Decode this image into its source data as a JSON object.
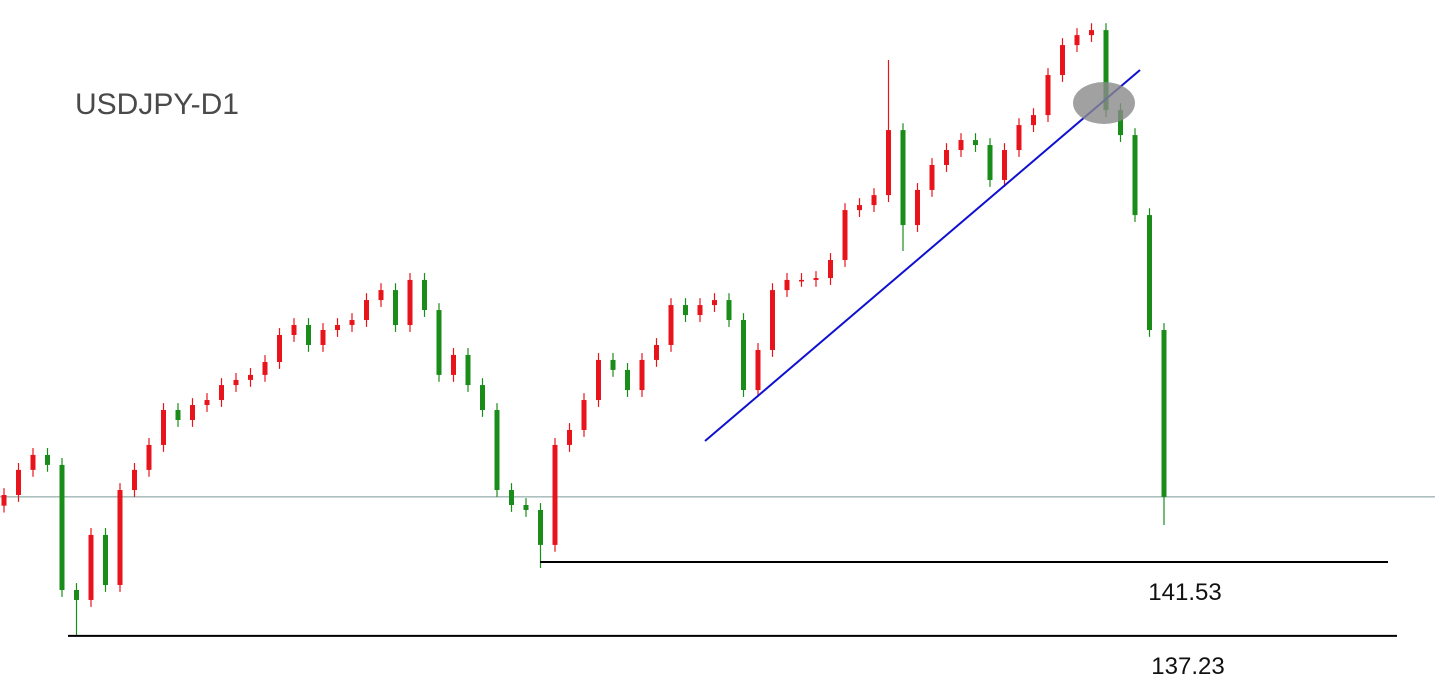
{
  "chart_data": {
    "type": "candlestick",
    "title": "USDJPY-D1",
    "ylim": [
      134.32,
      174.19
    ],
    "up_color": "#e8141c",
    "down_color": "#1a8c1a",
    "levels": [
      141.53,
      137.23
    ],
    "open": [
      144.8,
      145.42,
      146.88,
      147.75,
      147.17,
      139.9,
      139.32,
      143.1,
      140.19,
      145.71,
      146.88,
      148.33,
      150.36,
      149.78,
      150.65,
      150.94,
      151.81,
      152.11,
      152.4,
      153.15,
      154.72,
      155.3,
      154.14,
      155.01,
      155.3,
      155.59,
      156.75,
      157.33,
      155.3,
      157.92,
      156.17,
      152.4,
      153.56,
      151.81,
      150.36,
      145.71,
      144.84,
      144.55,
      142.52,
      148.33,
      149.2,
      150.94,
      153.27,
      152.69,
      151.52,
      153.27,
      154.14,
      156.46,
      155.88,
      156.46,
      156.75,
      155.59,
      151.52,
      153.85,
      157.33,
      157.92,
      157.92,
      158.03,
      159.08,
      161.98,
      162.27,
      162.85,
      166.63,
      161.11,
      163.15,
      164.6,
      165.47,
      166.05,
      165.76,
      163.73,
      165.47,
      166.92,
      167.5,
      169.83,
      171.57,
      172.15,
      172.44,
      167.79,
      166.34,
      161.69,
      155.01
    ],
    "high": [
      145.82,
      147.28,
      148.15,
      148.15,
      147.57,
      140.3,
      143.5,
      143.5,
      146.11,
      147.28,
      148.73,
      150.76,
      150.76,
      151.05,
      151.34,
      152.21,
      152.51,
      152.8,
      153.55,
      155.12,
      155.7,
      155.7,
      155.41,
      155.7,
      155.99,
      157.15,
      157.73,
      157.73,
      158.32,
      158.32,
      156.57,
      153.96,
      153.96,
      152.21,
      150.76,
      146.11,
      145.24,
      144.95,
      148.73,
      149.6,
      151.34,
      153.67,
      153.67,
      153.09,
      153.67,
      154.54,
      156.86,
      156.86,
      156.86,
      157.15,
      157.15,
      155.99,
      154.25,
      157.73,
      158.32,
      158.32,
      158.43,
      159.48,
      162.38,
      162.67,
      163.25,
      170.7,
      167.03,
      163.55,
      165.0,
      165.87,
      166.45,
      166.45,
      166.16,
      165.87,
      167.32,
      167.9,
      170.23,
      171.97,
      172.55,
      172.84,
      172.84,
      168.19,
      166.74,
      162.09,
      155.41
    ],
    "low": [
      144.4,
      145.02,
      146.48,
      146.77,
      139.5,
      137.23,
      138.92,
      139.79,
      139.79,
      145.31,
      146.48,
      147.93,
      149.38,
      149.38,
      150.25,
      150.54,
      151.41,
      151.71,
      152.0,
      152.75,
      154.32,
      153.74,
      153.74,
      154.61,
      154.9,
      155.19,
      156.35,
      154.9,
      154.9,
      155.77,
      152.0,
      152.0,
      151.41,
      149.96,
      145.31,
      144.44,
      144.15,
      141.18,
      142.12,
      147.93,
      148.8,
      150.54,
      152.29,
      151.12,
      151.12,
      152.87,
      153.74,
      155.48,
      155.48,
      156.06,
      155.19,
      151.12,
      151.12,
      153.45,
      156.93,
      157.52,
      157.52,
      157.63,
      158.68,
      161.58,
      161.87,
      162.45,
      159.6,
      160.71,
      162.75,
      164.2,
      165.07,
      165.36,
      163.33,
      163.33,
      165.07,
      166.52,
      167.1,
      169.43,
      171.17,
      171.75,
      167.39,
      165.94,
      161.29,
      154.61,
      143.68
    ],
    "close": [
      145.42,
      146.88,
      147.75,
      147.17,
      139.9,
      139.32,
      143.1,
      140.19,
      145.71,
      146.88,
      148.33,
      150.36,
      149.78,
      150.65,
      150.94,
      151.81,
      152.11,
      152.4,
      153.15,
      154.72,
      155.3,
      154.14,
      155.01,
      155.3,
      155.59,
      156.75,
      157.33,
      155.3,
      157.92,
      156.17,
      152.4,
      153.56,
      151.81,
      150.36,
      145.71,
      144.84,
      144.55,
      142.52,
      148.33,
      149.2,
      150.94,
      153.27,
      152.69,
      151.52,
      153.27,
      154.14,
      156.46,
      155.88,
      156.46,
      156.75,
      155.59,
      151.52,
      153.85,
      157.33,
      157.92,
      157.92,
      158.03,
      159.08,
      161.98,
      162.27,
      162.85,
      166.63,
      161.11,
      163.15,
      164.6,
      165.47,
      166.05,
      165.76,
      163.73,
      165.47,
      166.92,
      167.5,
      169.83,
      171.57,
      172.15,
      172.44,
      167.79,
      166.34,
      161.69,
      155.01,
      145.31
    ]
  }
}
